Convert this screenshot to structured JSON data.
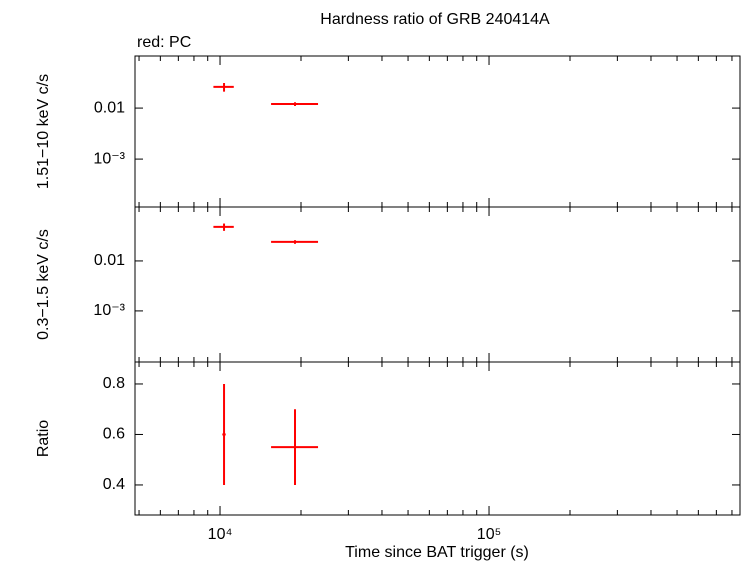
{
  "title": "Hardness ratio of GRB 240414A",
  "annotation": "red: PC",
  "xlabel": "Time since BAT trigger (s)",
  "x_axis": {
    "log": true,
    "xlim": [
      4830,
      857000
    ],
    "xticks": [
      {
        "value": 10000,
        "label": "10⁴"
      },
      {
        "value": 100000,
        "label": "10⁵"
      }
    ],
    "minor_ticks": [
      5000,
      6000,
      7000,
      8000,
      9000,
      20000,
      30000,
      40000,
      50000,
      60000,
      70000,
      80000,
      90000,
      200000,
      300000,
      400000,
      500000,
      600000,
      700000,
      800000
    ]
  },
  "chart_data": [
    {
      "type": "scatter",
      "ylabel": "1.51−10 keV c/s",
      "ylog": true,
      "ylim": [
        0.000115,
        0.105
      ],
      "yticks": [
        {
          "value": 0.01,
          "label": "0.01"
        },
        {
          "value": 0.001,
          "label": "10⁻³"
        }
      ],
      "color": "#ff0000",
      "x": [
        10350,
        19000
      ],
      "xerr_minus": [
        900,
        3520
      ],
      "xerr_plus": [
        900,
        4140
      ],
      "values": [
        0.026,
        0.012
      ],
      "yerr": [
        0.005,
        0.001
      ]
    },
    {
      "type": "scatter",
      "ylabel": "0.3−1.5 keV c/s",
      "ylog": true,
      "ylim": [
        9.5e-05,
        0.12
      ],
      "yticks": [
        {
          "value": 0.01,
          "label": "0.01"
        },
        {
          "value": 0.001,
          "label": "10⁻³"
        }
      ],
      "color": "#ff0000",
      "x": [
        10350,
        19000
      ],
      "xerr_minus": [
        900,
        3520
      ],
      "xerr_plus": [
        900,
        4140
      ],
      "values": [
        0.048,
        0.024
      ],
      "yerr": [
        0.008,
        0.002
      ]
    },
    {
      "type": "scatter",
      "ylabel": "Ratio",
      "ylog": false,
      "ylim": [
        0.281,
        0.887
      ],
      "yticks": [
        0.4,
        0.6,
        0.8
      ],
      "color": "#ff0000",
      "x": [
        10350,
        19000
      ],
      "xerr_minus": [
        150,
        3520
      ],
      "xerr_plus": [
        150,
        4140
      ],
      "values": [
        0.6,
        0.55
      ],
      "yerr": [
        0.2,
        0.15
      ]
    }
  ]
}
